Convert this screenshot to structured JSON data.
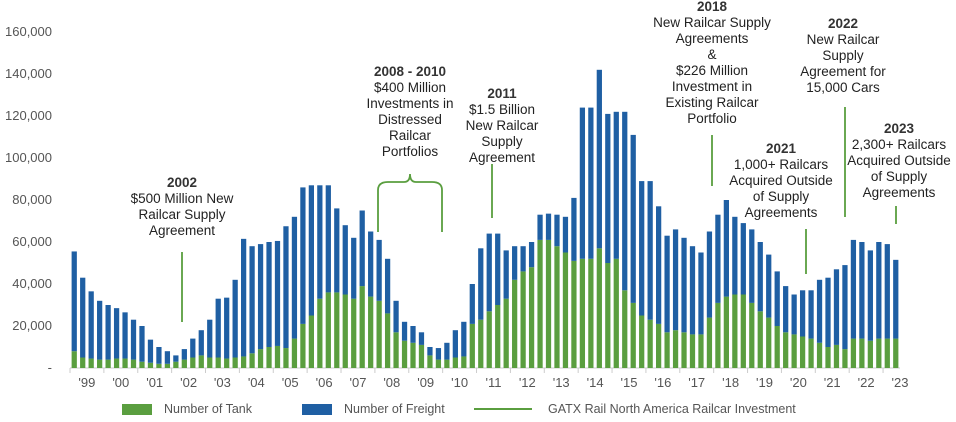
{
  "chart_data": {
    "type": "bar",
    "stacked": true,
    "ylim": [
      0,
      160000
    ],
    "yticks": [
      "160,000",
      "140,000",
      "120,000",
      "100,000",
      "80,000",
      "60,000",
      "40,000",
      "20,000",
      "-"
    ],
    "year_labels": [
      "'99",
      "'00",
      "'01",
      "'02",
      "'03",
      "'04",
      "'05",
      "'06",
      "'07",
      "'08",
      "'09",
      "'10",
      "'11",
      "'12",
      "'13",
      "'14",
      "'15",
      "'16",
      "'17",
      "'18",
      "'19",
      "'20",
      "'21",
      "'22",
      "'23"
    ],
    "colors": {
      "tank": "#5a9e3f",
      "freight": "#1f5fa3",
      "investment": "#5a9e3f",
      "axis": "#cccccc"
    },
    "series": [
      {
        "name": "Number of Tank",
        "values": [
          8000,
          5000,
          4500,
          4000,
          4000,
          4500,
          4500,
          4000,
          3000,
          2500,
          2000,
          2000,
          3000,
          4000,
          5000,
          6000,
          5000,
          5000,
          4500,
          5000,
          5500,
          7000,
          9000,
          10000,
          10500,
          9500,
          14000,
          21000,
          25000,
          33000,
          36000,
          36000,
          35000,
          33000,
          39000,
          34000,
          32000,
          26000,
          17000,
          13000,
          12000,
          11000,
          6000,
          4000,
          4000,
          5000,
          5500,
          21000,
          23000,
          27000,
          30000,
          33000,
          42000,
          46000,
          48000,
          61000,
          61000,
          58000,
          55000,
          51000,
          52000,
          52000,
          57000,
          50000,
          52000,
          37000,
          31000,
          25000,
          23000,
          21000,
          17000,
          18000,
          17000,
          16000,
          16000,
          24000,
          31000,
          34000,
          35000,
          35000,
          31000,
          27000,
          24000,
          20000,
          17000,
          16000,
          15000,
          14000,
          12000,
          10000,
          11000,
          9000,
          14000,
          14000,
          13000,
          14000,
          14000,
          14000
        ]
      },
      {
        "name": "Number of Freight",
        "values": [
          47500,
          38000,
          32000,
          28000,
          26000,
          24000,
          22000,
          19000,
          17000,
          11000,
          8000,
          6000,
          3000,
          5000,
          9000,
          12000,
          18000,
          28000,
          29000,
          37000,
          56000,
          51000,
          50000,
          50000,
          50000,
          58000,
          58000,
          65000,
          62000,
          54000,
          51000,
          40000,
          33000,
          29000,
          36000,
          31000,
          29000,
          26000,
          15000,
          9000,
          8000,
          6000,
          4000,
          5500,
          8000,
          13000,
          16500,
          19000,
          34000,
          37000,
          34000,
          23000,
          16000,
          12000,
          12000,
          12000,
          12500,
          15000,
          17000,
          30000,
          72000,
          72000,
          85000,
          71000,
          70000,
          85000,
          80000,
          64000,
          66000,
          56000,
          46000,
          48000,
          45000,
          42000,
          39000,
          41000,
          42000,
          46000,
          37000,
          34000,
          35000,
          33000,
          30000,
          26000,
          22000,
          19000,
          22000,
          23000,
          30000,
          33000,
          36000,
          40000,
          47000,
          46000,
          43000,
          46000,
          45000,
          37500
        ]
      }
    ],
    "annotations": [
      {
        "title": "2002",
        "lines": [
          "$500 Million New",
          "Railcar Supply",
          "Agreement"
        ]
      },
      {
        "title": "2008 - 2010",
        "lines": [
          "$400 Million",
          "Investments in",
          "Distressed",
          "Railcar",
          "Portfolios"
        ]
      },
      {
        "title": "2011",
        "lines": [
          "$1.5 Billion",
          "New Railcar",
          "Supply",
          "Agreement"
        ]
      },
      {
        "title": "2018",
        "lines": [
          "New Railcar Supply",
          "Agreements",
          "&",
          "$226 Million",
          "Investment in",
          "Existing Railcar",
          "Portfolio"
        ]
      },
      {
        "title": "2021",
        "lines": [
          "1,000+ Railcars",
          "Acquired Outside",
          "of Supply",
          "Agreements"
        ]
      },
      {
        "title": "2022",
        "lines": [
          "New Railcar",
          "Supply",
          "Agreement for",
          "15,000 Cars"
        ]
      },
      {
        "title": "2023",
        "lines": [
          "2,300+ Railcars",
          "Acquired Outside",
          "of Supply",
          "Agreements"
        ]
      }
    ]
  },
  "legend": {
    "tank": "Number of Tank",
    "freight": "Number of Freight",
    "investment": "GATX Rail North America Railcar Investment"
  }
}
